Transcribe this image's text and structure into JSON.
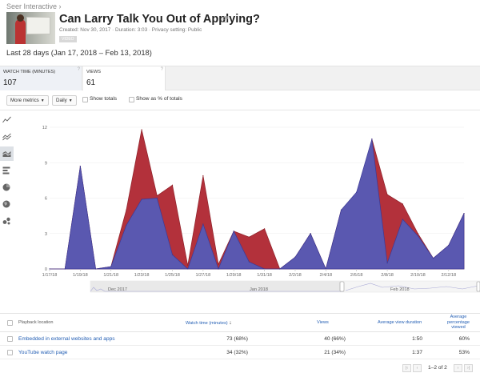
{
  "video": {
    "channel": "Seer Interactive",
    "title": "Can Larry Talk You Out of Applying?",
    "meta": "Created: Nov 30, 2017 · Duration: 3:03 · Privacy setting: Public",
    "badge": "VIDEO",
    "open_icon": "external-link-icon"
  },
  "date_range": "Last 28 days (Jan 17, 2018 – Feb 13, 2018)",
  "metrics": [
    {
      "label": "WATCH TIME (MINUTES)",
      "value": "107",
      "active": true
    },
    {
      "label": "VIEWS",
      "value": "61",
      "active": false
    }
  ],
  "controls": {
    "more_metrics": "More metrics",
    "interval": "Daily",
    "show_totals": "Show totals",
    "show_percent": "Show as % of totals"
  },
  "chart_data": {
    "type": "area",
    "x": [
      "1/17/18",
      "1/18/18",
      "1/19/18",
      "1/20/18",
      "1/21/18",
      "1/22/18",
      "1/23/18",
      "1/24/18",
      "1/25/18",
      "1/26/18",
      "1/27/18",
      "1/28/18",
      "1/29/18",
      "1/30/18",
      "1/31/18",
      "2/1/18",
      "2/2/18",
      "2/3/18",
      "2/4/18",
      "2/5/18",
      "2/6/18",
      "2/7/18",
      "2/8/18",
      "2/9/18",
      "2/10/18",
      "2/11/18",
      "2/12/18",
      "2/13/18"
    ],
    "x_tick_labels": [
      "1/17/18",
      "1/19/18",
      "1/21/18",
      "1/23/18",
      "1/25/18",
      "1/27/18",
      "1/29/18",
      "1/31/18",
      "2/2/18",
      "2/4/18",
      "2/6/18",
      "2/8/18",
      "2/10/18",
      "2/12/18"
    ],
    "y_ticks": [
      0,
      3,
      6,
      9,
      12
    ],
    "ylim": [
      0,
      12
    ],
    "series": [
      {
        "name": "Embedded in external websites and apps",
        "color": "#b3313b",
        "values": [
          0,
          0,
          8.7,
          0,
          0.2,
          5,
          11.8,
          6.2,
          7.1,
          0.3,
          7.9,
          0.4,
          3.2,
          2.7,
          3.4,
          0,
          1,
          3,
          0,
          5,
          4.5,
          11,
          6.3,
          5.5,
          3,
          0.9,
          2,
          4.7
        ]
      },
      {
        "name": "YouTube watch page",
        "color": "#5a58b0",
        "values": [
          0,
          0,
          8.7,
          0,
          0.2,
          3.7,
          5.9,
          6,
          1.2,
          0,
          3.8,
          0,
          3.2,
          0.6,
          0,
          0,
          1,
          3,
          0,
          5,
          6.5,
          11,
          0.5,
          4.2,
          2.8,
          0.9,
          2,
          4.7
        ]
      }
    ],
    "overview_labels": [
      "Dec 2017",
      "Jan 2018",
      "Feb 2018"
    ]
  },
  "table": {
    "headers": {
      "location": "Playback location",
      "watch_time": "Watch time (minutes)",
      "views": "Views",
      "avg_duration": "Average view duration",
      "avg_pct": "Average percentage viewed"
    },
    "rows": [
      {
        "location": "Embedded in external websites and apps",
        "watch_time": "73 (68%)",
        "views": "40 (66%)",
        "avg_duration": "1:50",
        "avg_pct": "60%"
      },
      {
        "location": "YouTube watch page",
        "watch_time": "34 (32%)",
        "views": "21 (34%)",
        "avg_duration": "1:37",
        "avg_pct": "53%"
      }
    ],
    "pagination": "1–2 of 2"
  }
}
